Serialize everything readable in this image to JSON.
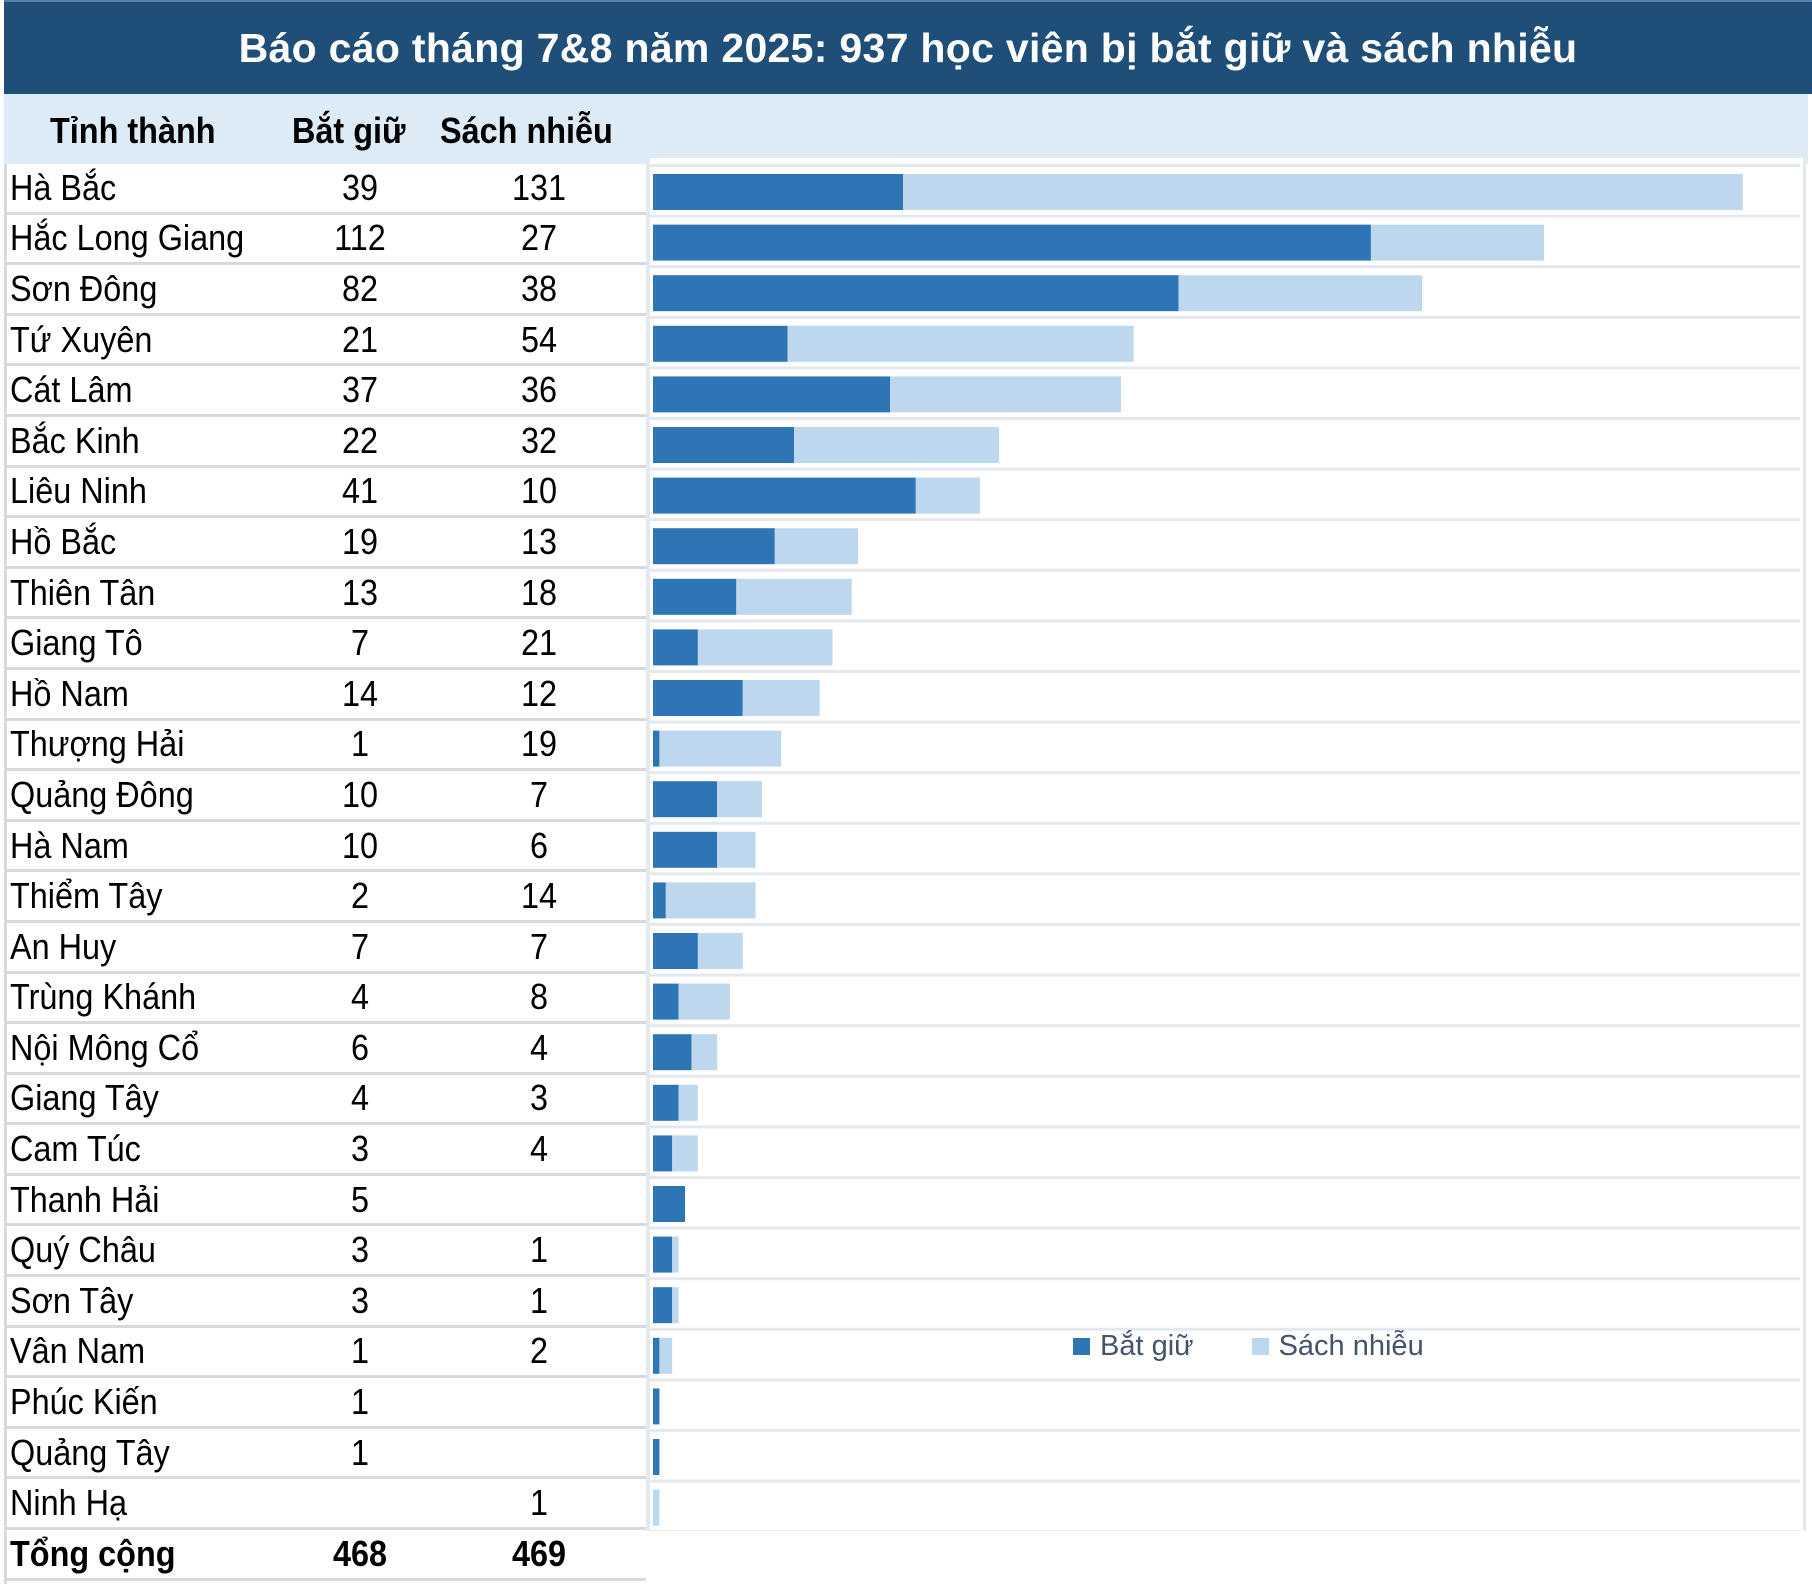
{
  "title": "Báo cáo tháng 7&8 năm 2025: 937 học viên bị bắt giữ và sách nhiễu",
  "headers": {
    "province": "Tỉnh thành",
    "arrested": "Bắt giữ",
    "harassed": "Sách nhiễu"
  },
  "colors": {
    "title_bg": "#1f4e79",
    "header_bg": "#ddebf7",
    "arrested": "#2e75b6",
    "harassed": "#bdd7ee",
    "grid": "#d9d9d9",
    "legend_text": "#44546a"
  },
  "rows": [
    {
      "name": "Hà Bắc",
      "arrested": "39",
      "harassed": "131"
    },
    {
      "name": "Hắc Long Giang",
      "arrested": "112",
      "harassed": "27"
    },
    {
      "name": "Sơn Đông",
      "arrested": "82",
      "harassed": "38"
    },
    {
      "name": "Tứ Xuyên",
      "arrested": "21",
      "harassed": "54"
    },
    {
      "name": "Cát Lâm",
      "arrested": "37",
      "harassed": "36"
    },
    {
      "name": "Bắc Kinh",
      "arrested": "22",
      "harassed": "32"
    },
    {
      "name": "Liêu Ninh",
      "arrested": "41",
      "harassed": "10"
    },
    {
      "name": "Hồ Bắc",
      "arrested": "19",
      "harassed": "13"
    },
    {
      "name": "Thiên Tân",
      "arrested": "13",
      "harassed": "18"
    },
    {
      "name": "Giang Tô",
      "arrested": "7",
      "harassed": "21"
    },
    {
      "name": "Hồ Nam",
      "arrested": "14",
      "harassed": "12"
    },
    {
      "name": "Thượng Hải",
      "arrested": "1",
      "harassed": "19"
    },
    {
      "name": "Quảng Đông",
      "arrested": "10",
      "harassed": "7"
    },
    {
      "name": "Hà Nam",
      "arrested": "10",
      "harassed": "6"
    },
    {
      "name": "Thiểm Tây",
      "arrested": "2",
      "harassed": "14"
    },
    {
      "name": "An Huy",
      "arrested": "7",
      "harassed": "7"
    },
    {
      "name": "Trùng Khánh",
      "arrested": "4",
      "harassed": "8"
    },
    {
      "name": "Nội Mông Cổ",
      "arrested": "6",
      "harassed": "4"
    },
    {
      "name": "Giang Tây",
      "arrested": "4",
      "harassed": "3"
    },
    {
      "name": "Cam Túc",
      "arrested": "3",
      "harassed": "4"
    },
    {
      "name": "Thanh Hải",
      "arrested": "5",
      "harassed": ""
    },
    {
      "name": "Quý Châu",
      "arrested": "3",
      "harassed": "1"
    },
    {
      "name": "Sơn Tây",
      "arrested": "3",
      "harassed": "1"
    },
    {
      "name": "Vân Nam",
      "arrested": "1",
      "harassed": "2"
    },
    {
      "name": "Phúc Kiến",
      "arrested": "1",
      "harassed": ""
    },
    {
      "name": "Quảng Tây",
      "arrested": "1",
      "harassed": ""
    },
    {
      "name": "Ninh Hạ",
      "arrested": "",
      "harassed": "1"
    }
  ],
  "total": {
    "label": "Tổng cộng",
    "arrested": "468",
    "harassed": "469"
  },
  "legend": {
    "arrested": "Bắt giữ",
    "harassed": "Sách nhiễu"
  },
  "chart_data": {
    "type": "bar",
    "orientation": "horizontal",
    "stacked": true,
    "title": "Báo cáo tháng 7&8 năm 2025: 937 học viên bị bắt giữ và sách nhiễu",
    "categories": [
      "Hà Bắc",
      "Hắc Long Giang",
      "Sơn Đông",
      "Tứ Xuyên",
      "Cát Lâm",
      "Bắc Kinh",
      "Liêu Ninh",
      "Hồ Bắc",
      "Thiên Tân",
      "Giang Tô",
      "Hồ Nam",
      "Thượng Hải",
      "Quảng Đông",
      "Hà Nam",
      "Thiểm Tây",
      "An Huy",
      "Trùng Khánh",
      "Nội Mông Cổ",
      "Giang Tây",
      "Cam Túc",
      "Thanh Hải",
      "Quý Châu",
      "Sơn Tây",
      "Vân Nam",
      "Phúc Kiến",
      "Quảng Tây",
      "Ninh Hạ"
    ],
    "series": [
      {
        "name": "Bắt giữ",
        "color": "#2e75b6",
        "values": [
          39,
          112,
          82,
          21,
          37,
          22,
          41,
          19,
          13,
          7,
          14,
          1,
          10,
          10,
          2,
          7,
          4,
          6,
          4,
          3,
          5,
          3,
          3,
          1,
          1,
          1,
          0
        ]
      },
      {
        "name": "Sách nhiễu",
        "color": "#bdd7ee",
        "values": [
          131,
          27,
          38,
          54,
          36,
          32,
          10,
          13,
          18,
          21,
          12,
          19,
          7,
          6,
          14,
          7,
          8,
          4,
          3,
          4,
          0,
          1,
          1,
          2,
          0,
          0,
          1
        ]
      }
    ],
    "xlim": [
      0,
      175
    ],
    "xlabel": "",
    "ylabel": "",
    "grid": false,
    "legend_position": "bottom-center"
  }
}
